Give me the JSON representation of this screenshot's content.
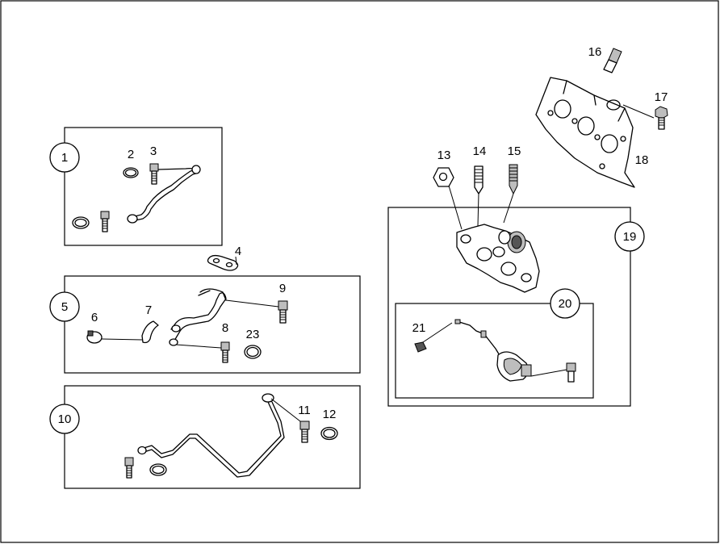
{
  "callouts": {
    "c1": "1",
    "c2": "2",
    "c3": "3",
    "c4": "4",
    "c5": "5",
    "c6": "6",
    "c7": "7",
    "c8": "8",
    "c9": "9",
    "c10": "10",
    "c11": "11",
    "c12": "12",
    "c13": "13",
    "c14": "14",
    "c15": "15",
    "c16": "16",
    "c17": "17",
    "c18": "18",
    "c19": "19",
    "c20": "20",
    "c21": "21",
    "c23": "23"
  }
}
